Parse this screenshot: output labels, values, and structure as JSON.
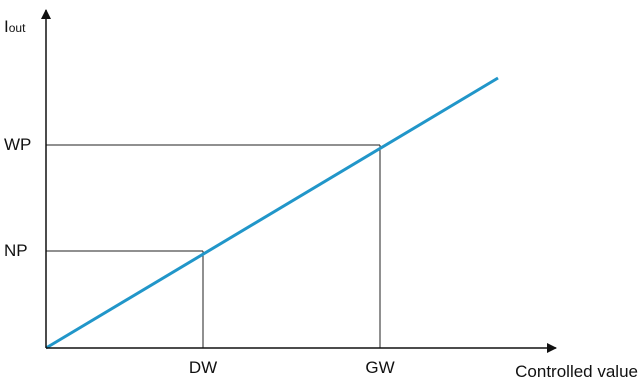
{
  "diagram": {
    "y_axis_label_main": "I",
    "y_axis_label_sub": "out",
    "x_axis_label": "Controlled value",
    "y_ticks": [
      "WP",
      "NP"
    ],
    "x_ticks": [
      "DW",
      "GW"
    ],
    "colors": {
      "line": "#2196c9",
      "axes": "#111111",
      "guides": "#222222"
    }
  }
}
